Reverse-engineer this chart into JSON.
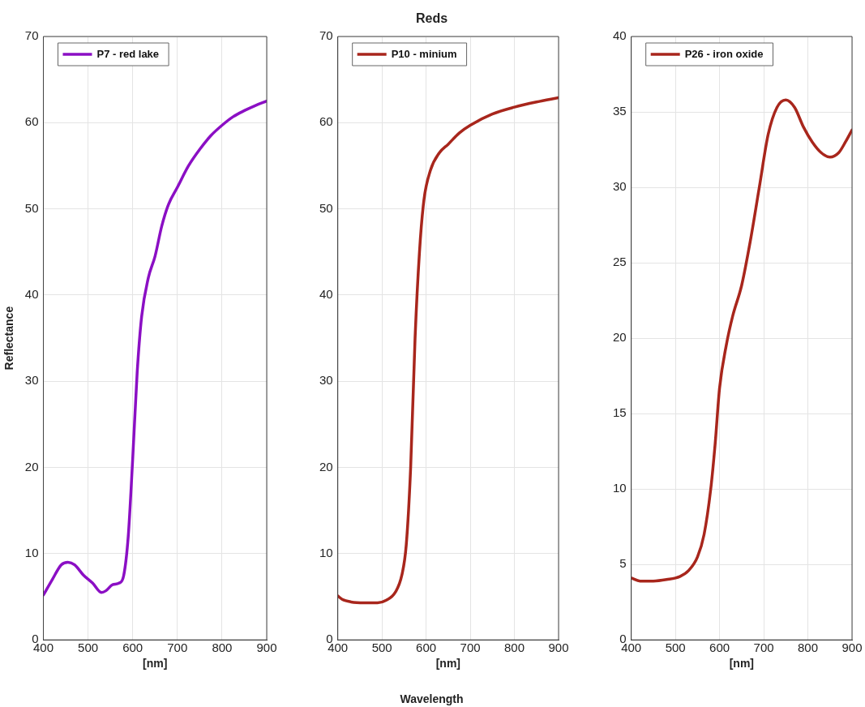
{
  "chart_data": [
    {
      "type": "line",
      "ylabel": "Reflectance",
      "xlabel": "[nm]",
      "xlim": [
        400,
        900
      ],
      "xticks": [
        400,
        500,
        600,
        700,
        800,
        900
      ],
      "ylim": [
        0,
        70
      ],
      "yticks": [
        0,
        10,
        20,
        30,
        40,
        50,
        60,
        70
      ],
      "grid": true,
      "legend": "top left",
      "series": [
        {
          "name": "P7 - red lake",
          "color": "#8b0fc4",
          "x": [
            400,
            420,
            440,
            455,
            470,
            490,
            510,
            530,
            540,
            555,
            570,
            580,
            590,
            600,
            610,
            620,
            635,
            650,
            665,
            680,
            700,
            725,
            750,
            775,
            800,
            825,
            850,
            875,
            900
          ],
          "values": [
            5.2,
            7,
            8.7,
            9,
            8.7,
            7.5,
            6.6,
            5.5,
            5.7,
            6.4,
            6.6,
            7.5,
            12,
            21,
            31,
            37.5,
            42,
            44.5,
            48,
            50.5,
            52.5,
            55,
            56.9,
            58.5,
            59.7,
            60.7,
            61.4,
            62,
            62.5
          ]
        }
      ]
    },
    {
      "type": "line",
      "title": "Reds",
      "xlabel": "[nm]",
      "annotations": [
        "Wavelength"
      ],
      "xlim": [
        400,
        900
      ],
      "xticks": [
        400,
        500,
        600,
        700,
        800,
        900
      ],
      "ylim": [
        0,
        70
      ],
      "yticks": [
        0,
        10,
        20,
        30,
        40,
        50,
        60,
        70
      ],
      "grid": true,
      "legend": "top left",
      "series": [
        {
          "name": "P10 - minium",
          "color": "#a8261c",
          "x": [
            400,
            410,
            430,
            460,
            490,
            510,
            530,
            545,
            555,
            565,
            575,
            585,
            595,
            610,
            630,
            650,
            675,
            700,
            750,
            800,
            850,
            900
          ],
          "values": [
            5.1,
            4.7,
            4.4,
            4.3,
            4.3,
            4.6,
            5.5,
            7.5,
            11,
            20,
            35,
            45,
            51,
            54.5,
            56.5,
            57.5,
            58.8,
            59.7,
            61,
            61.8,
            62.4,
            62.9
          ]
        }
      ]
    },
    {
      "type": "line",
      "xlabel": "[nm]",
      "xlim": [
        400,
        900
      ],
      "xticks": [
        400,
        500,
        600,
        700,
        800,
        900
      ],
      "ylim": [
        0,
        40
      ],
      "yticks": [
        0,
        5,
        10,
        15,
        20,
        25,
        30,
        35,
        40
      ],
      "grid": true,
      "legend": "top left",
      "series": [
        {
          "name": "P26 - iron oxide",
          "color": "#a8261c",
          "x": [
            400,
            420,
            450,
            480,
            510,
            530,
            550,
            565,
            580,
            590,
            600,
            615,
            630,
            650,
            670,
            690,
            710,
            730,
            750,
            770,
            790,
            810,
            830,
            850,
            870,
            885,
            900
          ],
          "values": [
            4.1,
            3.9,
            3.9,
            4,
            4.2,
            4.6,
            5.5,
            7,
            10,
            13,
            16.7,
            19.5,
            21.5,
            23.5,
            26.5,
            30,
            33.5,
            35.3,
            35.8,
            35.3,
            34,
            33,
            32.3,
            32,
            32.3,
            33,
            33.8
          ]
        }
      ]
    }
  ]
}
